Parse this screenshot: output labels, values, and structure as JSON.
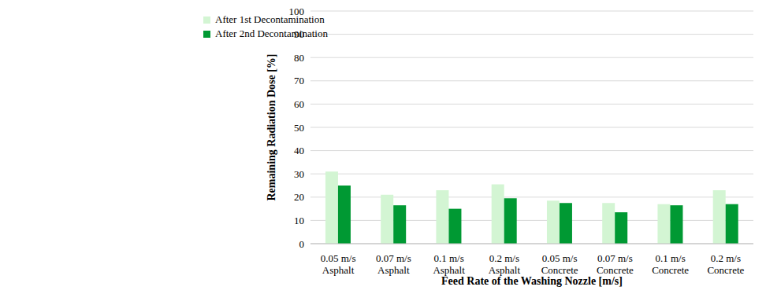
{
  "chart_data": {
    "type": "bar",
    "x_label": "Feed Rate of the Washing Nozzle [m/s]",
    "y_label": "Remaining Radiation Dose [%]",
    "categories": [
      "0.05 m/s\nAsphalt",
      "0.07 m/s\nAsphalt",
      "0.1 m/s\nAsphalt",
      "0.2 m/s\nAsphalt",
      "0.05 m/s\nConcrete",
      "0.07 m/s\nConcrete",
      "0.1 m/s\nConcrete",
      "0.2 m/s\nConcrete"
    ],
    "series": [
      {
        "name": "After 1st Decontamination",
        "color": "#d3f5d3",
        "values": [
          31,
          21,
          23,
          25.5,
          18.5,
          17.5,
          17,
          23
        ]
      },
      {
        "name": "After 2nd Decontamination",
        "color": "#009933",
        "values": [
          25,
          16.5,
          15,
          19.5,
          17.5,
          13.5,
          16.5,
          17
        ]
      }
    ],
    "ylim": [
      0,
      100
    ],
    "yticks": [
      0,
      10,
      20,
      30,
      40,
      50,
      60,
      70,
      80,
      90,
      100
    ],
    "grid": true,
    "legend": "upper left"
  }
}
